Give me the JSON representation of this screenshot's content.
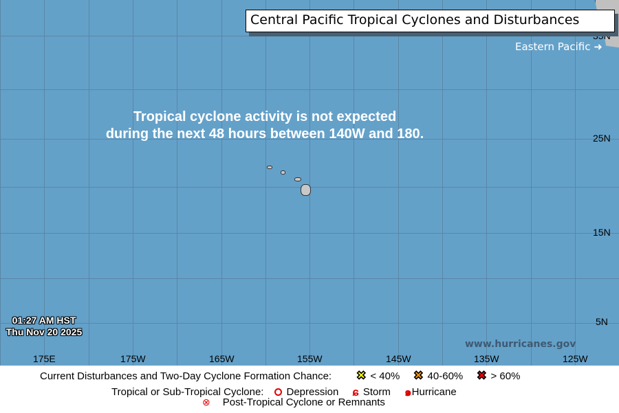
{
  "title": "Central Pacific Tropical Cyclones and Disturbances",
  "eastern_pacific_link": "Eastern Pacific",
  "message_line1": "Tropical cyclone activity is not expected",
  "message_line2": "during the next 48 hours between 140W and 180.",
  "timestamp": {
    "time": "01:27 AM HST",
    "date": "Thu Nov 20 2025"
  },
  "website": "www.hurricanes.gov",
  "lon_labels": [
    "175E",
    "175W",
    "165W",
    "155W",
    "145W",
    "135W",
    "125W"
  ],
  "lat_labels": [
    "35N",
    "25N",
    "15N",
    "5N"
  ],
  "colors": {
    "ocean": "#64a1c9",
    "land": "#c0c0c0",
    "low": "#ffff00",
    "medium": "#ff9900",
    "high": "#ff0000",
    "cyclone": "#e00000"
  },
  "legend": {
    "row1_label": "Current Disturbances and Two-Day Cyclone Formation Chance:",
    "low": "< 40%",
    "medium": "40-60%",
    "high": "> 60%",
    "row2_label": "Tropical or Sub-Tropical Cyclone:",
    "depression": "Depression",
    "storm": "Storm",
    "hurricane": "Hurricane",
    "post_tropical": "Post-Tropical Cyclone or Remnants"
  }
}
